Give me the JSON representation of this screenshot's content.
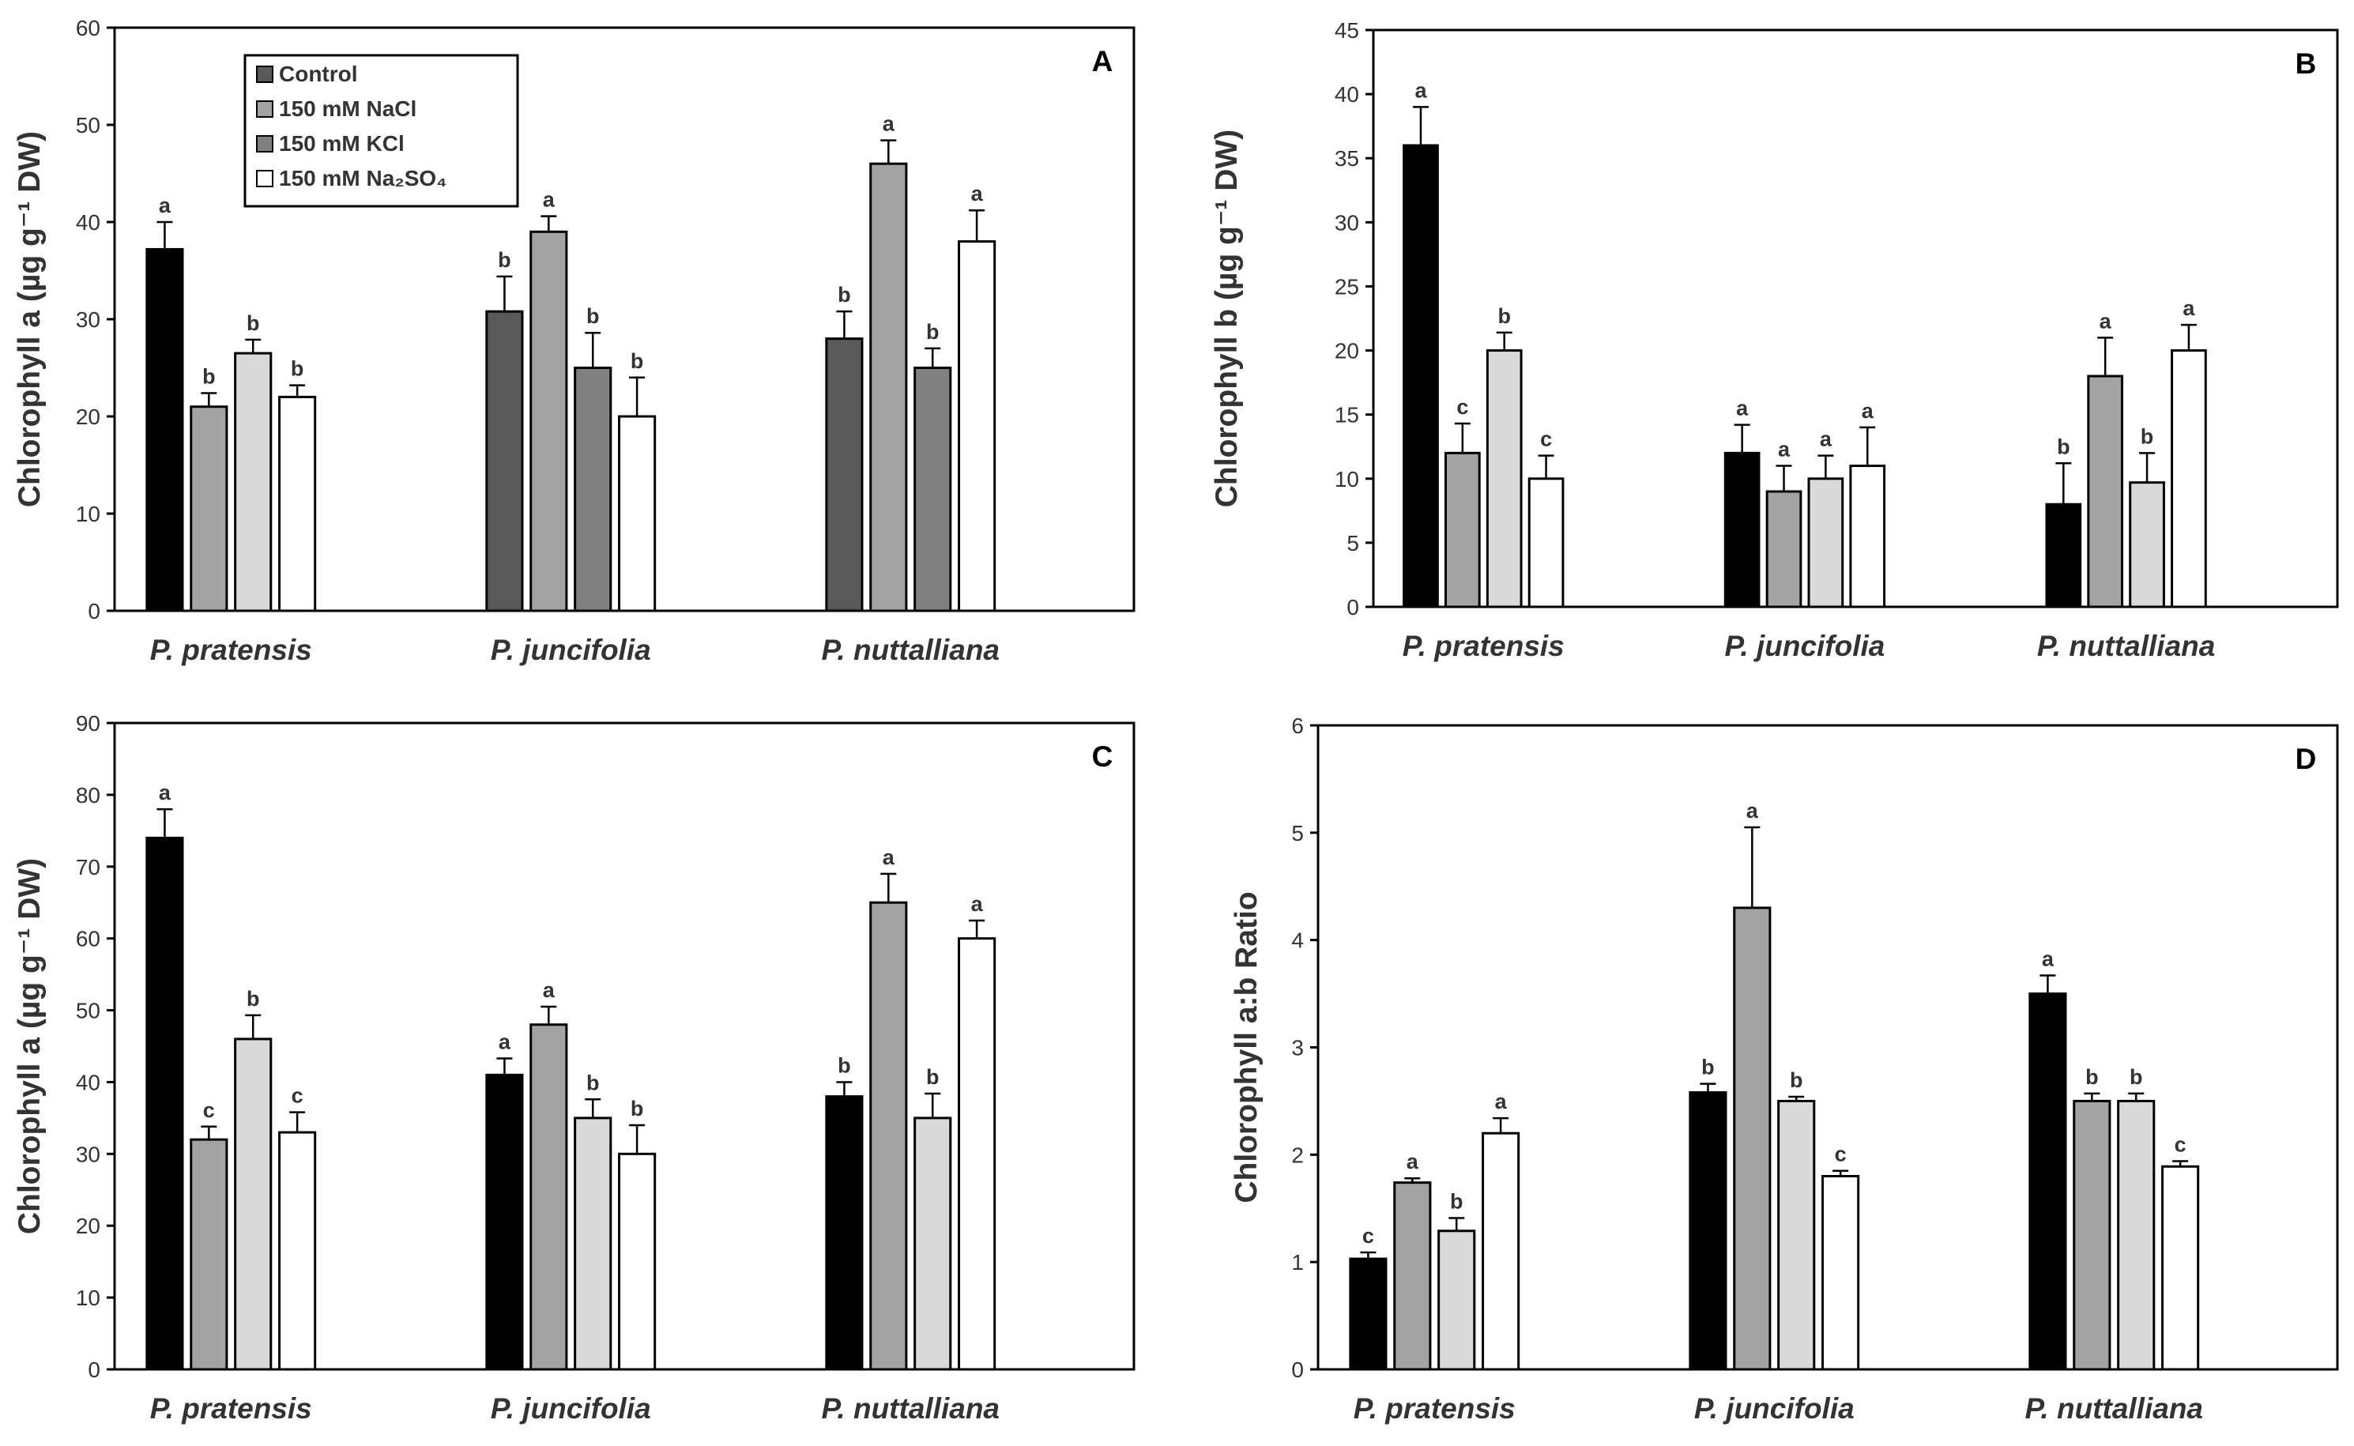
{
  "legend": {
    "items": [
      {
        "label": "Control"
      },
      {
        "label": "150 mM NaCl"
      },
      {
        "label": "150 mM KCl"
      },
      {
        "label": "150 mM Na₂SO₄"
      }
    ]
  },
  "chart_data": [
    {
      "type": "bar",
      "panel_label": "A",
      "ylabel": "Chlorophyll a (µg g⁻¹ DW)",
      "ylim": [
        0,
        60
      ],
      "yticks": [
        0,
        10,
        20,
        30,
        40,
        50,
        60
      ],
      "categories": [
        "P. pratensis",
        "P. juncifolia",
        "P. nuttalliana"
      ],
      "bar_colors": [
        "#000000",
        "#a3a3a3",
        "#d9d9d9",
        "#ffffff"
      ],
      "category_bar_colors": [
        [
          "#000000",
          "#a3a3a3",
          "#d9d9d9",
          "#ffffff"
        ],
        [
          "#595959",
          "#a3a3a3",
          "#808080",
          "#ffffff"
        ],
        [
          "#595959",
          "#a3a3a3",
          "#808080",
          "#ffffff"
        ]
      ],
      "series": [
        {
          "name": "Control",
          "values": [
            37.2,
            30.8,
            28.0
          ],
          "errors": [
            2.8,
            3.6,
            2.8
          ],
          "letters": [
            "a",
            "b",
            "b"
          ]
        },
        {
          "name": "150 mM NaCl",
          "values": [
            21.0,
            39.0,
            46.0
          ],
          "errors": [
            1.4,
            1.6,
            2.4
          ],
          "letters": [
            "b",
            "a",
            "a"
          ]
        },
        {
          "name": "150 mM KCl",
          "values": [
            26.5,
            25.0,
            25.0
          ],
          "errors": [
            1.4,
            3.6,
            2.0
          ],
          "letters": [
            "b",
            "b",
            "b"
          ]
        },
        {
          "name": "150 mM Na₂SO₄",
          "values": [
            22.0,
            20.0,
            38.0
          ],
          "errors": [
            1.2,
            4.0,
            3.2
          ],
          "letters": [
            "b",
            "b",
            "a"
          ]
        }
      ],
      "grid": false
    },
    {
      "type": "bar",
      "panel_label": "B",
      "ylabel": "Chlorophyll b (µg g⁻¹ DW)",
      "ylim": [
        0,
        45
      ],
      "yticks": [
        0,
        5,
        10,
        15,
        20,
        25,
        30,
        35,
        40,
        45
      ],
      "categories": [
        "P. pratensis",
        "P. juncifolia",
        "P. nuttalliana"
      ],
      "bar_colors": [
        "#000000",
        "#a3a3a3",
        "#d9d9d9",
        "#ffffff"
      ],
      "series": [
        {
          "name": "Control",
          "values": [
            36.0,
            12.0,
            8.0
          ],
          "errors": [
            3.0,
            2.2,
            3.2
          ],
          "letters": [
            "a",
            "a",
            "b"
          ]
        },
        {
          "name": "150 mM NaCl",
          "values": [
            12.0,
            9.0,
            18.0
          ],
          "errors": [
            2.3,
            2.0,
            3.0
          ],
          "letters": [
            "c",
            "a",
            "a"
          ]
        },
        {
          "name": "150 mM KCl",
          "values": [
            20.0,
            10.0,
            9.7
          ],
          "errors": [
            1.4,
            1.8,
            2.3
          ],
          "letters": [
            "b",
            "a",
            "b"
          ]
        },
        {
          "name": "150 mM Na₂SO₄",
          "values": [
            10.0,
            11.0,
            20.0
          ],
          "errors": [
            1.8,
            3.0,
            2.0
          ],
          "letters": [
            "c",
            "a",
            "a"
          ]
        }
      ],
      "grid": false
    },
    {
      "type": "bar",
      "panel_label": "C",
      "ylabel": "Chlorophyll a (µg g⁻¹ DW)",
      "ylim": [
        0,
        90
      ],
      "yticks": [
        0,
        10,
        20,
        30,
        40,
        50,
        60,
        70,
        80,
        90
      ],
      "categories": [
        "P. pratensis",
        "P. juncifolia",
        "P. nuttalliana"
      ],
      "bar_colors": [
        "#000000",
        "#a3a3a3",
        "#d9d9d9",
        "#ffffff"
      ],
      "series": [
        {
          "name": "Control",
          "values": [
            74.0,
            41.0,
            38.0
          ],
          "errors": [
            4.0,
            2.3,
            2.0
          ],
          "letters": [
            "a",
            "a",
            "b"
          ]
        },
        {
          "name": "150 mM NaCl",
          "values": [
            32.0,
            48.0,
            65.0
          ],
          "errors": [
            1.8,
            2.5,
            4.0
          ],
          "letters": [
            "c",
            "a",
            "a"
          ]
        },
        {
          "name": "150 mM KCl",
          "values": [
            46.0,
            35.0,
            35.0
          ],
          "errors": [
            3.3,
            2.6,
            3.4
          ],
          "letters": [
            "b",
            "b",
            "b"
          ]
        },
        {
          "name": "150 mM Na₂SO₄",
          "values": [
            33.0,
            30.0,
            60.0
          ],
          "errors": [
            2.8,
            4.0,
            2.5
          ],
          "letters": [
            "c",
            "b",
            "a"
          ]
        }
      ],
      "grid": false
    },
    {
      "type": "bar",
      "panel_label": "D",
      "ylabel": "Chlorophyll a:b Ratio",
      "ylim": [
        0,
        6
      ],
      "yticks": [
        0,
        1,
        2,
        3,
        4,
        5,
        6
      ],
      "categories": [
        "P. pratensis",
        "P. juncifolia",
        "P. nuttalliana"
      ],
      "bar_colors": [
        "#000000",
        "#a3a3a3",
        "#d9d9d9",
        "#ffffff"
      ],
      "series": [
        {
          "name": "Control",
          "values": [
            1.03,
            2.58,
            3.5
          ],
          "errors": [
            0.06,
            0.08,
            0.17
          ],
          "letters": [
            "c",
            "b",
            "a"
          ]
        },
        {
          "name": "150 mM NaCl",
          "values": [
            1.74,
            4.3,
            2.5
          ],
          "errors": [
            0.04,
            0.75,
            0.07
          ],
          "letters": [
            "a",
            "a",
            "b"
          ]
        },
        {
          "name": "150 mM KCl",
          "values": [
            1.29,
            2.5,
            2.5
          ],
          "errors": [
            0.12,
            0.04,
            0.07
          ],
          "letters": [
            "b",
            "b",
            "b"
          ]
        },
        {
          "name": "150 mM Na₂SO₄",
          "values": [
            2.2,
            1.8,
            1.89
          ],
          "errors": [
            0.14,
            0.05,
            0.05
          ],
          "letters": [
            "a",
            "c",
            "c"
          ]
        }
      ],
      "grid": false
    }
  ]
}
